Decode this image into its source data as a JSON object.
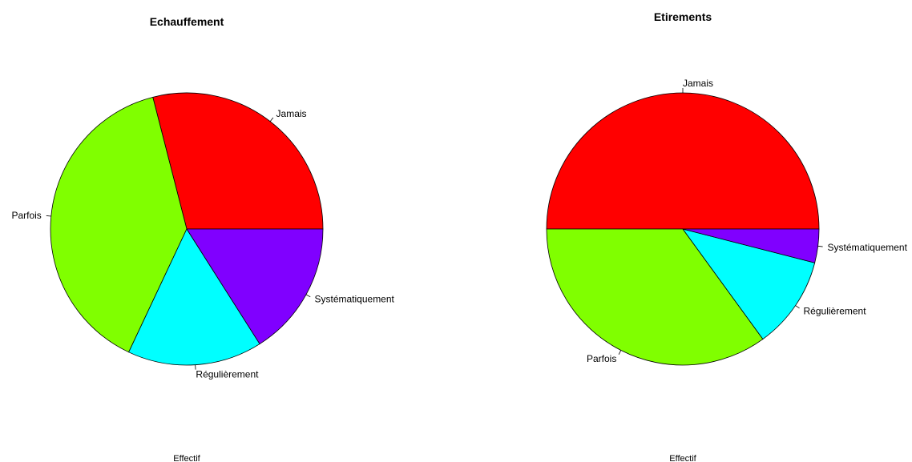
{
  "chart_data": [
    {
      "type": "pie",
      "title": "Echauffement",
      "xlabel": "Effectif",
      "slices": [
        {
          "label": "Jamais",
          "value": 29,
          "color": "#FF0000"
        },
        {
          "label": "Parfois",
          "value": 39,
          "color": "#80FF00"
        },
        {
          "label": "Régulièrement",
          "value": 16,
          "color": "#00FFFF"
        },
        {
          "label": "Systématiquement",
          "value": 16,
          "color": "#8000FF"
        }
      ]
    },
    {
      "type": "pie",
      "title": "Etirements",
      "xlabel": "Effectif",
      "slices": [
        {
          "label": "Jamais",
          "value": 50,
          "color": "#FF0000"
        },
        {
          "label": "Parfois",
          "value": 35,
          "color": "#80FF00"
        },
        {
          "label": "Régulièrement",
          "value": 11,
          "color": "#00FFFF"
        },
        {
          "label": "Systématiquement",
          "value": 4,
          "color": "#8000FF"
        }
      ]
    }
  ]
}
